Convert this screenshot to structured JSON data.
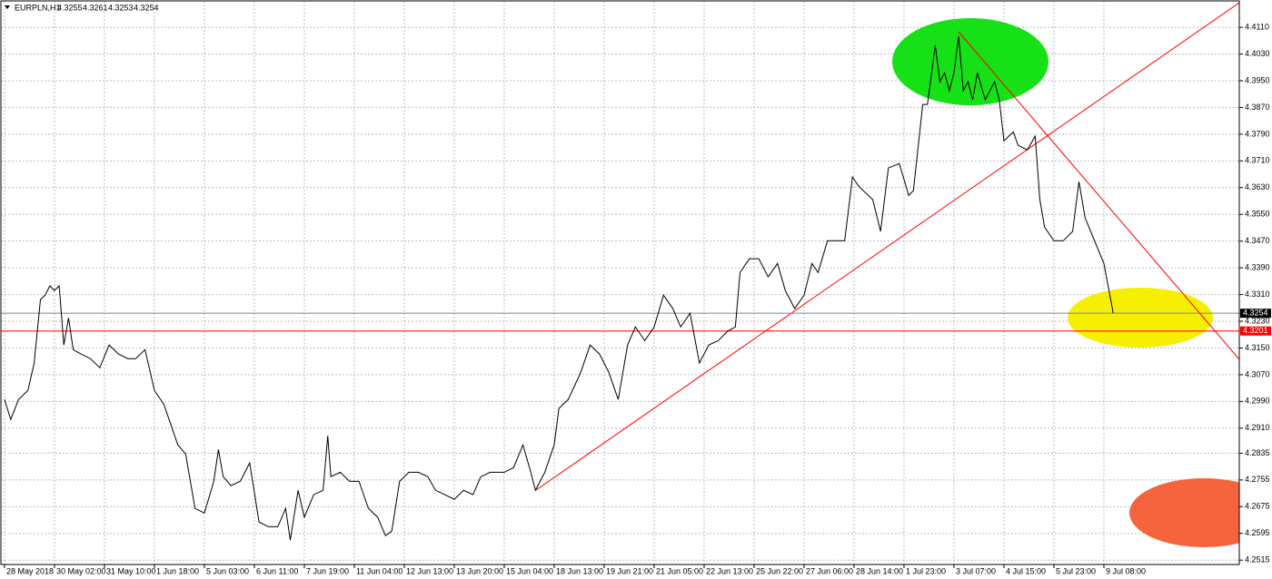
{
  "chart_data": {
    "type": "line",
    "symbol": "EURPLN,H1",
    "ohlc": [
      4.3255,
      4.3261,
      4.3253,
      4.3254
    ],
    "color": "#000000",
    "grid": true,
    "x": [
      0,
      4,
      9,
      15,
      19,
      23,
      26,
      29,
      32,
      35,
      38,
      41,
      44,
      49,
      55,
      61,
      67,
      73,
      79,
      84,
      90,
      96,
      102,
      111,
      116,
      122,
      128,
      134,
      137,
      140,
      145,
      151,
      157,
      163,
      169,
      175,
      180,
      183,
      188,
      192,
      198,
      204,
      207,
      209,
      215,
      221,
      227,
      233,
      239,
      244,
      248,
      253,
      259,
      265,
      271,
      276,
      282,
      288,
      294,
      300,
      305,
      311,
      320,
      326,
      332,
      337,
      340,
      346,
      352,
      355,
      361,
      369,
      375,
      381,
      387,
      393,
      399,
      404,
      410,
      416,
      422,
      428,
      433,
      439,
      445,
      451,
      457,
      463,
      468,
      471,
      477,
      483,
      489,
      495,
      500,
      506,
      512,
      517,
      521,
      527,
      532,
      538,
      543,
      547,
      556,
      561,
      566,
      573,
      579,
      582,
      588,
      591,
      596,
      599,
      602,
      605,
      608,
      611,
      614,
      617,
      620,
      623,
      628,
      634,
      637,
      640,
      646,
      649,
      655,
      660,
      663,
      666,
      672,
      678,
      684,
      688,
      692,
      698,
      704,
      710
    ],
    "values": [
      4.2996,
      4.2936,
      4.2996,
      4.3023,
      4.3105,
      4.3295,
      4.3308,
      4.3336,
      4.3322,
      4.3336,
      4.3159,
      4.324,
      4.3145,
      4.3132,
      4.3118,
      4.3091,
      4.3159,
      4.3132,
      4.3118,
      4.3118,
      4.3145,
      4.3023,
      4.2982,
      4.286,
      4.2833,
      4.267,
      4.2656,
      4.2751,
      4.2846,
      4.2765,
      4.2738,
      4.2751,
      4.2806,
      4.2629,
      4.2615,
      4.2615,
      4.267,
      4.2575,
      4.2724,
      4.2643,
      4.2711,
      4.2724,
      4.2887,
      4.2765,
      4.2778,
      4.2751,
      4.2751,
      4.267,
      4.2643,
      4.2588,
      4.2602,
      4.2751,
      4.2778,
      4.2778,
      4.2765,
      4.2724,
      4.2711,
      4.2697,
      4.2724,
      4.2711,
      4.2765,
      4.2778,
      4.2778,
      4.2792,
      4.286,
      4.2778,
      4.2724,
      4.2778,
      4.286,
      4.2969,
      4.2996,
      4.3077,
      4.3159,
      4.3132,
      4.3077,
      4.2996,
      4.3159,
      4.3213,
      4.3172,
      4.3213,
      4.3308,
      4.3268,
      4.3213,
      4.3254,
      4.3105,
      4.3159,
      4.3172,
      4.32,
      4.3213,
      4.3376,
      4.3417,
      4.3417,
      4.3363,
      4.3403,
      4.3322,
      4.3268,
      4.3308,
      4.3403,
      4.3376,
      4.3471,
      4.3471,
      4.3471,
      4.3662,
      4.3634,
      4.3594,
      4.3499,
      4.3689,
      4.3702,
      4.3607,
      4.3621,
      4.3879,
      4.3879,
      4.4056,
      4.3947,
      4.3974,
      4.392,
      4.3974,
      4.4083,
      4.392,
      4.3947,
      4.3893,
      4.3974,
      4.3893,
      4.3947,
      4.3893,
      4.377,
      4.3797,
      4.3757,
      4.3743,
      4.3784,
      4.3594,
      4.3512,
      4.3471,
      4.3471,
      4.3499,
      4.3648,
      4.3539,
      4.3471,
      4.3403,
      4.3254
    ],
    "xlim": [
      -2.3,
      790.7
    ],
    "ylim": [
      4.2502,
      4.4189
    ],
    "xticks": [
      {
        "value": 0,
        "label": "28 May 2018"
      },
      {
        "value": 32,
        "label": "30 May 02:00"
      },
      {
        "value": 64,
        "label": "31 May 10:00"
      },
      {
        "value": 96,
        "label": "1 Jun 18:00"
      },
      {
        "value": 128,
        "label": "5 Jun 03:00"
      },
      {
        "value": 160,
        "label": "6 Jun 11:00"
      },
      {
        "value": 192,
        "label": "7 Jun 19:00"
      },
      {
        "value": 224,
        "label": "11 Jun 04:00"
      },
      {
        "value": 256,
        "label": "12 Jun 13:00"
      },
      {
        "value": 288,
        "label": "13 Jun 20:00"
      },
      {
        "value": 320,
        "label": "15 Jun 04:00"
      },
      {
        "value": 352,
        "label": "18 Jun 13:00"
      },
      {
        "value": 384,
        "label": "19 Jun 21:00"
      },
      {
        "value": 416,
        "label": "21 Jun 05:00"
      },
      {
        "value": 448,
        "label": "22 Jun 13:00"
      },
      {
        "value": 480,
        "label": "25 Jun 22:00"
      },
      {
        "value": 512,
        "label": "27 Jun 06:00"
      },
      {
        "value": 544,
        "label": "28 Jun 14:00"
      },
      {
        "value": 576,
        "label": "1 Jul 23:00"
      },
      {
        "value": 608,
        "label": "3 Jul 07:00"
      },
      {
        "value": 640,
        "label": "4 Jul 15:00"
      },
      {
        "value": 672,
        "label": "5 Jul 23:00"
      },
      {
        "value": 704,
        "label": "9 Jul 08:00"
      }
    ],
    "yticks": [
      {
        "value": 4.411,
        "label": "4.4110"
      },
      {
        "value": 4.403,
        "label": "4.4030"
      },
      {
        "value": 4.395,
        "label": "4.3950"
      },
      {
        "value": 4.387,
        "label": "4.3870"
      },
      {
        "value": 4.379,
        "label": "4.3790"
      },
      {
        "value": 4.371,
        "label": "4.3710"
      },
      {
        "value": 4.363,
        "label": "4.3630"
      },
      {
        "value": 4.355,
        "label": "4.3550"
      },
      {
        "value": 4.347,
        "label": "4.3470"
      },
      {
        "value": 4.339,
        "label": "4.3390"
      },
      {
        "value": 4.331,
        "label": "4.3310"
      },
      {
        "value": 4.323,
        "label": "4.3230"
      },
      {
        "value": 4.315,
        "label": "4.3150"
      },
      {
        "value": 4.307,
        "label": "4.3070"
      },
      {
        "value": 4.299,
        "label": "4.2990"
      },
      {
        "value": 4.291,
        "label": "4.2910"
      },
      4.2835,
      4.2755,
      4.2675,
      4.2595,
      4.2515
    ],
    "hlines": [
      {
        "value": 4.3254,
        "color": "#778899",
        "label_color": "#000000"
      },
      {
        "value": 4.3201,
        "color": "#ff0000",
        "label_color": "#ff0000"
      }
    ]
  }
}
